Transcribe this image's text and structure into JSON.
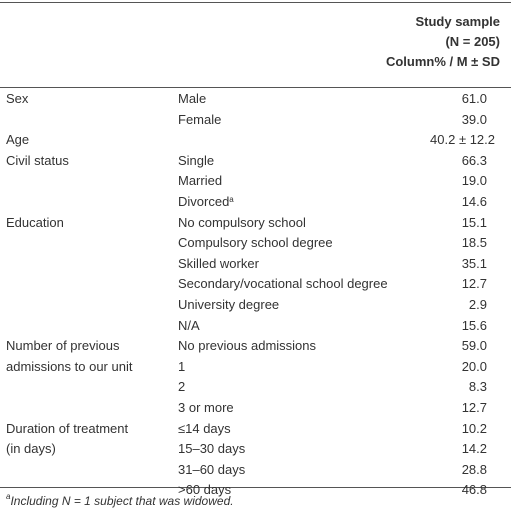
{
  "header": {
    "lines": [
      "Study sample",
      "(N = 205)",
      "Column% / M ± SD"
    ]
  },
  "table": {
    "rows": [
      {
        "label": "Sex",
        "sub": "Male",
        "value": "61.0"
      },
      {
        "sub": "Female",
        "value": "39.0"
      },
      {
        "label": "Age",
        "value": "40.2 ± 12.2"
      },
      {
        "label": "Civil status",
        "sub": "Single",
        "value": "66.3"
      },
      {
        "sub": "Married",
        "value": "19.0"
      },
      {
        "sub": "Divorced",
        "sub_note": "a",
        "value": "14.6"
      },
      {
        "label": "Education",
        "sub": "No compulsory school",
        "value": "15.1"
      },
      {
        "sub": "Compulsory school degree",
        "value": "18.5"
      },
      {
        "sub": "Skilled worker",
        "value": "35.1"
      },
      {
        "sub": "Secondary/vocational school degree",
        "value": "12.7"
      },
      {
        "sub": "University degree",
        "value": "2.9"
      },
      {
        "sub": "N/A",
        "value": "15.6"
      },
      {
        "label": "Number of previous",
        "sub": "No previous admissions",
        "value": "59.0"
      },
      {
        "label": "admissions to our unit",
        "sub": "1",
        "value": "20.0"
      },
      {
        "sub": "2",
        "value": "8.3"
      },
      {
        "sub": "3 or more",
        "value": "12.7"
      },
      {
        "label": "Duration of treatment",
        "sub": "≤14 days",
        "value": "10.2"
      },
      {
        "label": "(in days)",
        "sub": "15–30 days",
        "value": "14.2"
      },
      {
        "sub": "31–60 days",
        "value": "28.8"
      },
      {
        "sub": ">60 days",
        "value": "46.8"
      }
    ]
  },
  "footnote": {
    "mark": "a",
    "text": "Including N = 1 subject that was widowed."
  }
}
